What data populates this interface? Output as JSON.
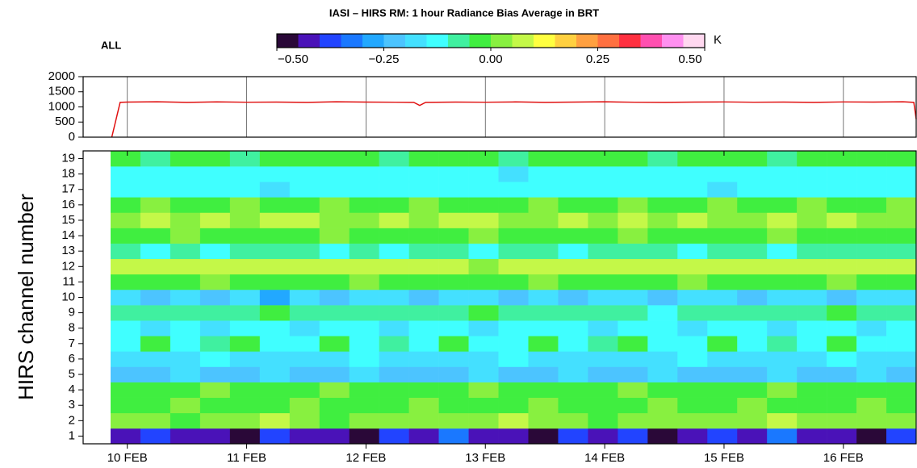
{
  "chart_data": [
    {
      "type": "line",
      "x": [
        9.87,
        9.94,
        10,
        10.25,
        10.5,
        10.75,
        11,
        11.25,
        11.5,
        11.75,
        12,
        12.25,
        12.4,
        12.45,
        12.5,
        12.75,
        13,
        13.25,
        13.5,
        13.75,
        14,
        14.25,
        14.5,
        14.75,
        15,
        15.25,
        15.5,
        15.75,
        16,
        16.25,
        16.5,
        16.59,
        16.61
      ],
      "values": [
        0,
        1150,
        1160,
        1170,
        1150,
        1165,
        1155,
        1160,
        1150,
        1170,
        1160,
        1155,
        1150,
        1050,
        1150,
        1160,
        1155,
        1165,
        1150,
        1160,
        1170,
        1155,
        1150,
        1160,
        1165,
        1155,
        1160,
        1150,
        1165,
        1160,
        1170,
        1150,
        600
      ],
      "color": "#e01010",
      "xlim": [
        9.63,
        16.61
      ],
      "xticks": [
        10,
        11,
        12,
        13,
        14,
        15,
        16
      ],
      "ylim": [
        0,
        2000
      ],
      "yticks": [
        0,
        500,
        1000,
        1500,
        2000
      ],
      "grid": true
    },
    {
      "type": "heatmap",
      "title": "IASI – HIRS RM: 1 hour Radiance Bias Average in BRT",
      "subtitle": "ALL",
      "ylabel": "HIRS channel number",
      "xlim": [
        9.63,
        16.61
      ],
      "xticks": [
        {
          "value": 10,
          "label": "10 FEB"
        },
        {
          "value": 11,
          "label": "11 FEB"
        },
        {
          "value": 12,
          "label": "12 FEB"
        },
        {
          "value": 13,
          "label": "13 FEB"
        },
        {
          "value": 14,
          "label": "14 FEB"
        },
        {
          "value": 15,
          "label": "15 FEB"
        },
        {
          "value": 16,
          "label": "16 FEB"
        }
      ],
      "bins": [
        9.86,
        10.11,
        10.36,
        10.61,
        10.86,
        11.11,
        11.36,
        11.61,
        11.86,
        12.11,
        12.36,
        12.61,
        12.86,
        13.11,
        13.36,
        13.61,
        13.86,
        14.11,
        14.36,
        14.61,
        14.86,
        15.11,
        15.36,
        15.61,
        15.86,
        16.11,
        16.36,
        16.61
      ],
      "categories": [
        1,
        2,
        3,
        4,
        5,
        6,
        7,
        8,
        9,
        10,
        11,
        12,
        13,
        14,
        15,
        16,
        17,
        18,
        19
      ],
      "rows": [
        [
          -0.42,
          -0.38,
          -0.44,
          -0.41,
          -0.46,
          -0.36,
          -0.43,
          -0.4,
          -0.47,
          -0.38,
          -0.42,
          -0.33,
          -0.44,
          -0.41,
          -0.48,
          -0.39,
          -0.43,
          -0.36,
          -0.46,
          -0.41,
          -0.38,
          -0.44,
          -0.34,
          -0.42,
          -0.4,
          -0.45,
          -0.37
        ],
        [
          0.02,
          0.04,
          -0.01,
          0.03,
          0.01,
          0.05,
          0.02,
          -0.02,
          0.03,
          0.01,
          0.04,
          0.0,
          0.02,
          0.06,
          0.01,
          0.03,
          -0.01,
          0.02,
          0.04,
          0.01,
          0.03,
          0.0,
          0.05,
          0.02,
          0.01,
          0.03,
          0.02
        ],
        [
          -0.02,
          -0.03,
          0.01,
          -0.01,
          -0.04,
          -0.02,
          0.02,
          -0.03,
          -0.01,
          -0.02,
          0.01,
          -0.04,
          -0.02,
          -0.01,
          0.02,
          -0.03,
          -0.02,
          -0.01,
          0.01,
          -0.03,
          -0.02,
          0.01,
          -0.01,
          -0.04,
          -0.02,
          0.02,
          -0.01
        ],
        [
          -0.03,
          -0.01,
          -0.04,
          0.01,
          -0.02,
          -0.03,
          -0.01,
          0.02,
          -0.04,
          -0.02,
          -0.01,
          -0.03,
          0.01,
          -0.02,
          -0.04,
          -0.01,
          -0.02,
          0.01,
          -0.03,
          -0.01,
          -0.02,
          -0.04,
          0.01,
          -0.02,
          -0.03,
          -0.01,
          -0.02
        ],
        [
          -0.21,
          -0.22,
          -0.19,
          -0.21,
          -0.23,
          -0.2,
          -0.22,
          -0.21,
          -0.19,
          -0.22,
          -0.21,
          -0.23,
          -0.2,
          -0.21,
          -0.22,
          -0.19,
          -0.21,
          -0.22,
          -0.2,
          -0.23,
          -0.21,
          -0.22,
          -0.19,
          -0.21,
          -0.22,
          -0.2,
          -0.21
        ],
        [
          -0.16,
          -0.17,
          -0.16,
          -0.15,
          -0.17,
          -0.16,
          -0.18,
          -0.16,
          -0.15,
          -0.17,
          -0.16,
          -0.16,
          -0.17,
          -0.15,
          -0.16,
          -0.17,
          -0.16,
          -0.18,
          -0.16,
          -0.15,
          -0.17,
          -0.16,
          -0.16,
          -0.17,
          -0.15,
          -0.16,
          -0.17
        ],
        [
          -0.12,
          -0.03,
          -0.13,
          -0.08,
          -0.02,
          -0.14,
          -0.11,
          -0.04,
          -0.12,
          -0.07,
          -0.13,
          -0.03,
          -0.11,
          -0.12,
          -0.04,
          -0.13,
          -0.09,
          -0.02,
          -0.12,
          -0.11,
          -0.04,
          -0.13,
          -0.08,
          -0.12,
          -0.03,
          -0.11,
          -0.13
        ],
        [
          -0.13,
          -0.16,
          -0.12,
          -0.17,
          -0.14,
          -0.11,
          -0.18,
          -0.13,
          -0.12,
          -0.16,
          -0.14,
          -0.13,
          -0.17,
          -0.12,
          -0.15,
          -0.13,
          -0.18,
          -0.12,
          -0.14,
          -0.16,
          -0.12,
          -0.13,
          -0.17,
          -0.14,
          -0.12,
          -0.16,
          -0.13
        ],
        [
          -0.08,
          -0.07,
          -0.09,
          -0.06,
          -0.08,
          -0.04,
          -0.07,
          -0.09,
          -0.08,
          -0.06,
          -0.07,
          -0.08,
          -0.03,
          -0.07,
          -0.09,
          -0.06,
          -0.08,
          -0.07,
          -0.11,
          -0.08,
          -0.06,
          -0.07,
          -0.09,
          -0.08,
          -0.04,
          -0.07,
          -0.08
        ],
        [
          -0.18,
          -0.21,
          -0.16,
          -0.22,
          -0.19,
          -0.26,
          -0.17,
          -0.21,
          -0.18,
          -0.16,
          -0.22,
          -0.19,
          -0.17,
          -0.21,
          -0.18,
          -0.23,
          -0.16,
          -0.19,
          -0.21,
          -0.17,
          -0.18,
          -0.22,
          -0.16,
          -0.19,
          -0.21,
          -0.17,
          -0.18
        ],
        [
          -0.02,
          -0.01,
          -0.03,
          0.01,
          -0.02,
          -0.04,
          -0.01,
          -0.02,
          0.01,
          -0.03,
          -0.02,
          -0.01,
          -0.03,
          -0.02,
          0.01,
          -0.01,
          -0.03,
          -0.02,
          -0.01,
          0.01,
          -0.02,
          -0.03,
          -0.01,
          -0.02,
          0.01,
          -0.03,
          -0.02
        ],
        [
          0.07,
          0.06,
          0.08,
          0.05,
          0.07,
          0.09,
          0.06,
          0.07,
          0.05,
          0.08,
          0.06,
          0.07,
          0.04,
          0.06,
          0.08,
          0.07,
          0.06,
          0.05,
          0.07,
          0.08,
          0.06,
          0.07,
          0.05,
          0.06,
          0.08,
          0.07,
          0.06
        ],
        [
          -0.09,
          -0.11,
          -0.07,
          -0.12,
          -0.08,
          -0.1,
          -0.06,
          -0.11,
          -0.09,
          -0.12,
          -0.08,
          -0.07,
          -0.11,
          -0.09,
          -0.06,
          -0.12,
          -0.08,
          -0.1,
          -0.07,
          -0.11,
          -0.09,
          -0.06,
          -0.12,
          -0.08,
          -0.1,
          -0.07,
          -0.09
        ],
        [
          -0.03,
          -0.02,
          0.01,
          -0.04,
          -0.02,
          -0.01,
          -0.03,
          0.01,
          -0.02,
          -0.04,
          -0.01,
          -0.02,
          0.01,
          -0.03,
          -0.02,
          -0.04,
          -0.01,
          0.01,
          -0.02,
          -0.03,
          -0.01,
          -0.02,
          0.01,
          -0.04,
          -0.02,
          -0.01,
          -0.03
        ],
        [
          0.04,
          0.06,
          0.03,
          0.07,
          0.02,
          0.05,
          0.08,
          0.03,
          0.04,
          0.06,
          0.02,
          0.05,
          0.07,
          0.03,
          0.04,
          0.06,
          0.02,
          0.05,
          0.03,
          0.07,
          0.04,
          0.02,
          0.06,
          0.03,
          0.05,
          0.04,
          0.02
        ],
        [
          -0.01,
          0.02,
          -0.03,
          -0.01,
          0.01,
          -0.02,
          -0.04,
          0.01,
          -0.02,
          -0.01,
          0.02,
          -0.03,
          -0.01,
          -0.02,
          0.01,
          -0.04,
          -0.01,
          0.02,
          -0.02,
          -0.03,
          0.01,
          -0.01,
          -0.02,
          0.02,
          -0.03,
          -0.01,
          0.01
        ],
        [
          -0.13,
          -0.12,
          -0.14,
          -0.11,
          -0.13,
          -0.16,
          -0.12,
          -0.13,
          -0.11,
          -0.14,
          -0.12,
          -0.13,
          -0.15,
          -0.12,
          -0.11,
          -0.13,
          -0.14,
          -0.12,
          -0.13,
          -0.11,
          -0.16,
          -0.12,
          -0.13,
          -0.14,
          -0.11,
          -0.12,
          -0.13
        ],
        [
          -0.12,
          -0.14,
          -0.11,
          -0.13,
          -0.12,
          -0.15,
          -0.11,
          -0.13,
          -0.12,
          -0.14,
          -0.11,
          -0.12,
          -0.13,
          -0.16,
          -0.12,
          -0.11,
          -0.13,
          -0.12,
          -0.14,
          -0.11,
          -0.13,
          -0.12,
          -0.15,
          -0.11,
          -0.12,
          -0.14,
          -0.12
        ],
        [
          -0.03,
          -0.06,
          -0.02,
          -0.04,
          -0.07,
          -0.01,
          -0.03,
          -0.05,
          -0.02,
          -0.06,
          -0.03,
          -0.04,
          -0.01,
          -0.07,
          -0.03,
          -0.02,
          -0.05,
          -0.03,
          -0.06,
          -0.01,
          -0.04,
          -0.03,
          -0.07,
          -0.02,
          -0.04,
          -0.05,
          -0.03
        ]
      ],
      "colorscale": {
        "colors": [
          "#2a0838",
          "#4a12b8",
          "#2244ff",
          "#1a78ff",
          "#22a8ff",
          "#4cc4ff",
          "#44e0ff",
          "#40ffff",
          "#40f0a0",
          "#40ee40",
          "#88f040",
          "#c4f848",
          "#ffff40",
          "#ffd040",
          "#ffa040",
          "#ff7040",
          "#ff3040",
          "#ff50b0",
          "#ff90f0",
          "#ffd8f0"
        ],
        "lim": [
          -0.5,
          0.5
        ],
        "ticks": [
          {
            "value": -0.5,
            "label": "−0.50"
          },
          {
            "value": -0.25,
            "label": "−0.25"
          },
          {
            "value": 0,
            "label": "0.00"
          },
          {
            "value": 0.25,
            "label": "0.25"
          },
          {
            "value": 0.5,
            "label": "0.50"
          }
        ],
        "unit": "K"
      }
    }
  ]
}
